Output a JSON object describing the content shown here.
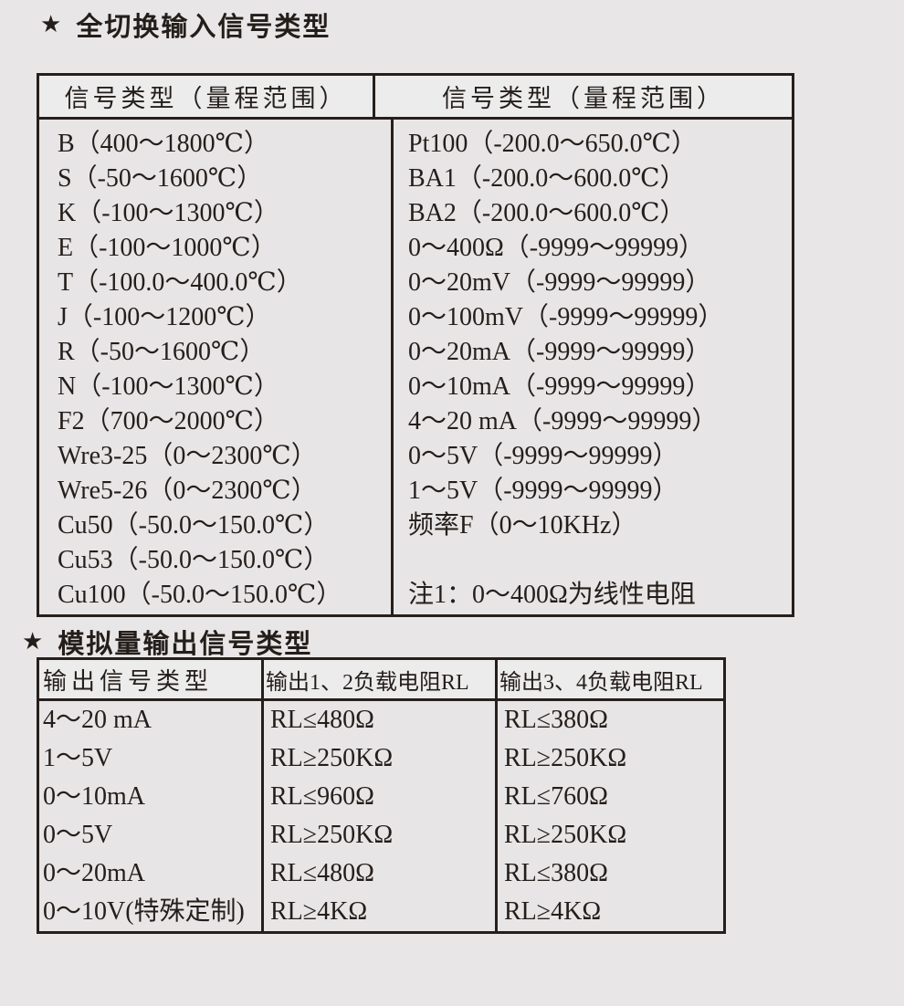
{
  "colors": {
    "background": "#e8e6e6",
    "table_border": "#261f1c",
    "header_bg": "#edecec",
    "body_bg": "#e7e5e5",
    "text": "#241e1b"
  },
  "section1": {
    "star": "★",
    "title": "全切换输入信号类型",
    "table": {
      "headers": [
        "信号类型（量程范围）",
        "信号类型（量程范围）"
      ],
      "left_rows": [
        "B（400～1800℃）",
        "S（-50～1600℃）",
        "K（-100～1300℃）",
        "E（-100～1000℃）",
        "T（-100.0～400.0℃）",
        "J（-100～1200℃）",
        "R（-50～1600℃）",
        "N（-100～1300℃）",
        "F2（700～2000℃）",
        "Wre3-25（0～2300℃）",
        "Wre5-26（0～2300℃）",
        "Cu50（-50.0～150.0℃）",
        "Cu53（-50.0～150.0℃）",
        "Cu100（-50.0～150.0℃）"
      ],
      "right_rows": [
        "Pt100（-200.0～650.0℃）",
        "BA1（-200.0～600.0℃）",
        "BA2（-200.0～600.0℃）",
        "0～400Ω（-9999～99999）",
        "0～20mV（-9999～99999）",
        "0～100mV（-9999～99999）",
        "0～20mA（-9999～99999）",
        "0～10mA（-9999～99999）",
        "4～20 mA（-9999～99999）",
        "0～5V（-9999～99999）",
        "1～5V（-9999～99999）",
        "频率F（0～10KHz）",
        "",
        "注1：0～400Ω为线性电阻"
      ]
    }
  },
  "section2": {
    "star": "★",
    "title": "模拟量输出信号类型",
    "table": {
      "headers": [
        "输出信号类型",
        "输出1、2负载电阻RL",
        "输出3、4负载电阻RL"
      ],
      "rows": [
        [
          "4～20 mA",
          "RL≤480Ω",
          "RL≤380Ω"
        ],
        [
          "1～5V",
          "RL≥250KΩ",
          "RL≥250KΩ"
        ],
        [
          "0～10mA",
          "RL≤960Ω",
          "RL≤760Ω"
        ],
        [
          "0～5V",
          "RL≥250KΩ",
          "RL≥250KΩ"
        ],
        [
          "0～20mA",
          "RL≤480Ω",
          "RL≤380Ω"
        ],
        [
          "0～10V(特殊定制)",
          "RL≥4KΩ",
          "RL≥4KΩ"
        ]
      ]
    }
  }
}
